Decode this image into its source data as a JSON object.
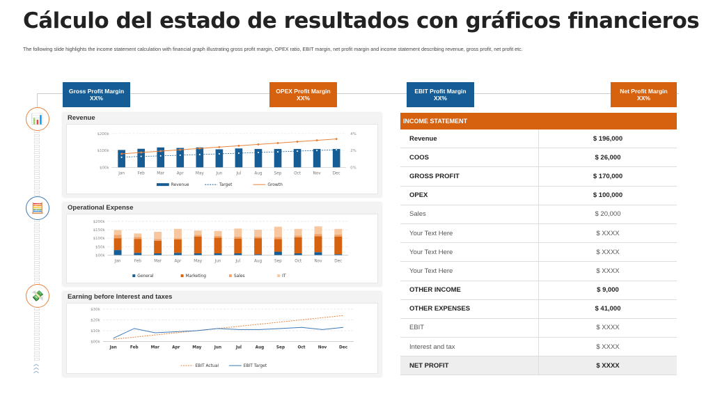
{
  "title": "Cálculo del estado de resultados con gráficos financieros",
  "subtitle": "The following slide highlights the income statement calculation with financial graph illustrating gross profit margin, OPEX ratio, EBIT margin, net profit  margin and income statement describing revenue, gross profit, net profit etc.",
  "header_boxes": [
    {
      "label": "Gross Profit Margin XX%",
      "color": "#155d94"
    },
    {
      "label": "OPEX Profit Margin XX%",
      "color": "#d6620f"
    },
    {
      "label": "EBIT Profit Margin XX%",
      "color": "#155d94"
    },
    {
      "label": "Net Profit Margin XX%",
      "color": "#d6620f"
    }
  ],
  "icons": [
    "report-chart-icon",
    "calculator-icon",
    "hand-money-icon",
    "chevrons-up-icon"
  ],
  "panels": {
    "revenue": "Revenue",
    "opex": "Operational Expense",
    "ebit": "Earning before Interest and taxes"
  },
  "chart_data": [
    {
      "type": "bar",
      "title": "Revenue",
      "categories": [
        "Jan",
        "Feb",
        "Mar",
        "Apr",
        "May",
        "Jun",
        "Jul",
        "Aug",
        "Sep",
        "Oct",
        "Nov",
        "Dec"
      ],
      "yticks": [
        "$00k",
        "$100k",
        "$200k"
      ],
      "y2ticks": [
        "0%",
        "2%",
        "4%"
      ],
      "ylim": [
        0,
        200
      ],
      "y2lim": [
        0,
        5
      ],
      "series": [
        {
          "name": "Revenue",
          "kind": "bar",
          "axis": "left",
          "color": "#155d94",
          "values": [
            103,
            110,
            118,
            115,
            118,
            107,
            112,
            109,
            109,
            109,
            109,
            109
          ]
        },
        {
          "name": "Target",
          "kind": "dashed-line",
          "axis": "left",
          "color": "#155d94",
          "values": [
            60,
            65,
            68,
            72,
            76,
            80,
            84,
            88,
            92,
            96,
            100,
            104
          ]
        },
        {
          "name": "Growth",
          "kind": "line",
          "axis": "right",
          "color": "#e8823a",
          "values": [
            2.0,
            2.2,
            2.4,
            2.6,
            2.8,
            3.0,
            3.2,
            3.4,
            3.6,
            3.8,
            4.0,
            4.2
          ]
        }
      ]
    },
    {
      "type": "bar",
      "stacked": true,
      "title": "Operational Expense",
      "categories": [
        "Jan",
        "Feb",
        "Mar",
        "Apr",
        "May",
        "Jun",
        "Jul",
        "Aug",
        "Sep",
        "Oct",
        "Nov",
        "Dec"
      ],
      "yticks": [
        "$00k",
        "$50k",
        "$100k",
        "$150k",
        "$200k"
      ],
      "ylim": [
        0,
        200
      ],
      "series": [
        {
          "name": "General",
          "color": "#155d94",
          "values": [
            30,
            13,
            10,
            13,
            10,
            10,
            10,
            5,
            20,
            10,
            17,
            5
          ]
        },
        {
          "name": "Marketing",
          "color": "#d6620f",
          "values": [
            70,
            83,
            75,
            80,
            100,
            93,
            88,
            95,
            75,
            95,
            95,
            105
          ]
        },
        {
          "name": "Sales",
          "color": "#f0a36a",
          "values": [
            20,
            12,
            10,
            7,
            10,
            10,
            12,
            10,
            13,
            10,
            13,
            12
          ]
        },
        {
          "name": "IT",
          "color": "#f7c7a0",
          "values": [
            28,
            20,
            43,
            55,
            25,
            30,
            47,
            40,
            60,
            40,
            45,
            33
          ]
        }
      ]
    },
    {
      "type": "line",
      "title": "Earning before Interest and taxes",
      "categories": [
        "Jan",
        "Feb",
        "Mar",
        "Apr",
        "May",
        "Jun",
        "Jul",
        "Aug",
        "Sep",
        "Oct",
        "Nov",
        "Dec"
      ],
      "yticks": [
        "$00k",
        "$10k",
        "$20k",
        "$30k"
      ],
      "ylim": [
        0,
        30
      ],
      "series": [
        {
          "name": "EBIT Actual",
          "dashed": true,
          "color": "#e8823a",
          "values": [
            2,
            4,
            6,
            8,
            10,
            12,
            14,
            16,
            18,
            20,
            22,
            24
          ]
        },
        {
          "name": "EBIT Target",
          "color": "#3a78b5",
          "values": [
            3,
            12,
            8,
            9,
            10,
            12,
            11,
            11,
            12,
            13,
            11,
            13
          ]
        }
      ]
    }
  ],
  "income_statement": {
    "header": "INCOME STATEMENT",
    "rows": [
      {
        "label": "Revenue",
        "value": "$ 196,000",
        "bold": true
      },
      {
        "label": "COOS",
        "value": "$  26,000",
        "bold": true
      },
      {
        "label": "GROSS PROFIT",
        "value": "$ 170,000",
        "bold": true
      },
      {
        "label": "OPEX",
        "value": "$ 100,000",
        "bold": true
      },
      {
        "label": "Sales",
        "value": "$ 20,000",
        "bold": false
      },
      {
        "label": "Your Text Here",
        "value": "$ XXXX",
        "bold": false
      },
      {
        "label": "Your Text Here",
        "value": "$ XXXX",
        "bold": false
      },
      {
        "label": "Your Text Here",
        "value": "$ XXXX",
        "bold": false
      },
      {
        "label": "OTHER INCOME",
        "value": "$  9,000",
        "bold": true
      },
      {
        "label": "OTHER EXPENSES",
        "value": "$ 41,000",
        "bold": true
      },
      {
        "label": "EBIT",
        "value": "$ XXXX",
        "bold": false
      },
      {
        "label": "Interest and tax",
        "value": "$ XXXX",
        "bold": false
      },
      {
        "label": "NET PROFIT",
        "value": "$ XXXX",
        "bold": true
      }
    ]
  }
}
